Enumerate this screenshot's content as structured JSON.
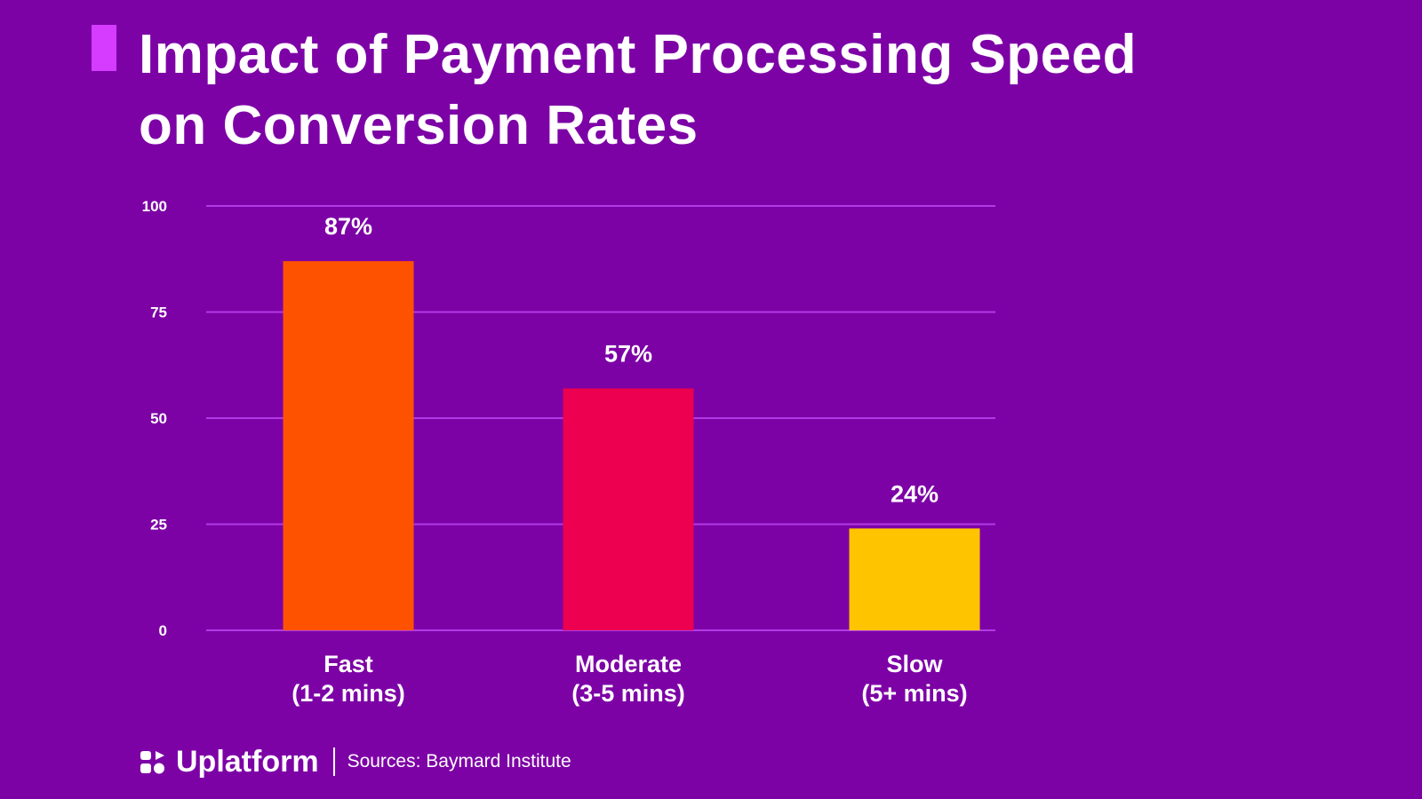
{
  "title": {
    "line1": "Impact of Payment Processing Speed",
    "line2": "on Conversion Rates"
  },
  "colors": {
    "background": "#7d02a6",
    "gridline": "#b13be6",
    "accent": "#d63cff",
    "text": "#ffffff"
  },
  "chart_data": {
    "type": "bar",
    "title": "Impact of Payment Processing Speed on Conversion Rates",
    "categories": [
      {
        "line1": "Fast",
        "line2": "(1-2 mins)"
      },
      {
        "line1": "Moderate",
        "line2": "(3-5 mins)"
      },
      {
        "line1": "Slow",
        "line2": "(5+ mins)"
      }
    ],
    "values": [
      87,
      57,
      24
    ],
    "value_labels": [
      "87%",
      "57%",
      "24%"
    ],
    "bar_colors": [
      "#ff5200",
      "#ec004f",
      "#ffc400"
    ],
    "yticks": [
      0,
      25,
      50,
      75,
      100
    ],
    "ylim": [
      0,
      100
    ],
    "xlabel": "",
    "ylabel": "",
    "grid": true
  },
  "footer": {
    "brand": "Uplatform",
    "source": "Sources: Baymard Institute",
    "logo_icon": "uplatform-logo-icon"
  }
}
